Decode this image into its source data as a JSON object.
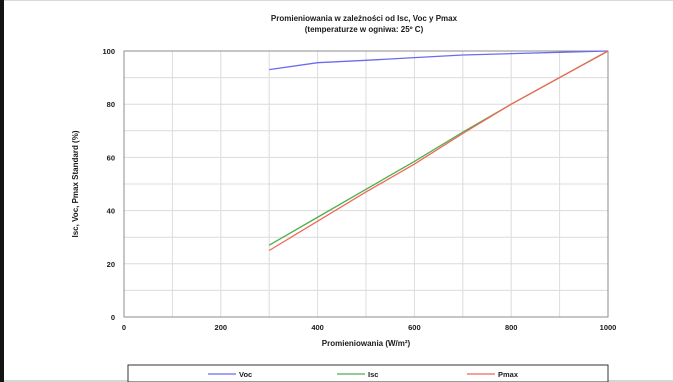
{
  "chart_data": {
    "type": "line",
    "title": "Promieniowania w zależności od Isc, Voc y Pmax",
    "subtitle": "(temperaturze w ogniwa: 25º C)",
    "xlabel": "Promieniowania (W/m²)",
    "ylabel": "Isc, Voc, Pmax Standard (%)",
    "xlim": [
      0,
      1000
    ],
    "ylim": [
      0,
      100
    ],
    "xticks": [
      0,
      200,
      400,
      600,
      800,
      1000
    ],
    "yticks": [
      0,
      20,
      40,
      60,
      80,
      100
    ],
    "x_minor_step": 100,
    "y_minor_step": 10,
    "grid": true,
    "legend_position": "bottom",
    "series": [
      {
        "name": "Voc",
        "color": "#6b6bf0",
        "x": [
          300,
          400,
          500,
          600,
          700,
          800,
          900,
          1000
        ],
        "y": [
          93,
          95.6,
          96.5,
          97.5,
          98.5,
          99,
          99.5,
          100
        ]
      },
      {
        "name": "Isc",
        "color": "#4fae4f",
        "x": [
          300,
          400,
          500,
          600,
          700,
          800,
          900,
          1000
        ],
        "y": [
          27,
          37.5,
          48,
          58.5,
          69.5,
          80,
          90,
          100
        ]
      },
      {
        "name": "Pmax",
        "color": "#f0685a",
        "x": [
          300,
          400,
          500,
          600,
          700,
          800,
          900,
          1000
        ],
        "y": [
          25,
          36,
          47,
          57.5,
          69,
          80,
          90,
          100
        ]
      }
    ]
  }
}
